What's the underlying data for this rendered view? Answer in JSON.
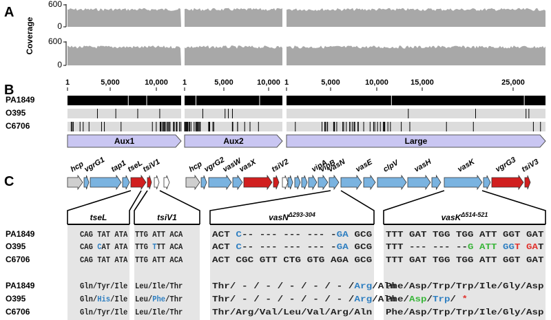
{
  "panel_a": {
    "label": "A",
    "axis_label": "Coverage",
    "tracks": [
      {
        "yticks": [
          600,
          0
        ]
      },
      {
        "yticks": [
          600,
          0
        ]
      }
    ]
  },
  "panel_b": {
    "label": "B",
    "rulers": [
      [
        "1",
        "5,000",
        "10,000"
      ],
      [
        "1",
        "5,000",
        "10,000"
      ],
      [
        "1",
        "5,000",
        "10,000",
        "15,000",
        "25,000"
      ]
    ],
    "rows": [
      "PA1849",
      "O395",
      "C6706"
    ],
    "regions": [
      "Aux1",
      "Aux2",
      "Large"
    ]
  },
  "panel_c": {
    "label": "C",
    "gene_labels": [
      "hcp",
      "vgrG1",
      "tap1",
      "tseL",
      "tsiV1",
      "hcp",
      "vgrG2",
      "vasW",
      "vasX",
      "tsiV2",
      "vipA",
      "vipB",
      "vasN",
      "vasE",
      "clpV",
      "vasH",
      "vasK",
      "vgrG3",
      "tsiV3"
    ],
    "alignments": [
      {
        "gene": "tseL"
      },
      {
        "gene": "tsiV1"
      },
      {
        "gene": "vasN",
        "sup": "Δ293-304"
      },
      {
        "gene": "vasK",
        "sup": "Δ514-521"
      }
    ],
    "dna_rows": [
      {
        "strain": "PA1849",
        "cells": [
          [
            "CAG TAT ATA"
          ],
          [
            "TTG ATT ACA"
          ],
          [
            "ACT ",
            {
              "text": "C",
              "color": "#2f7fc1"
            },
            "-- --- --- --- -",
            {
              "text": "GA",
              "color": "#2f7fc1"
            },
            " GCG"
          ],
          [
            "TTT GAT TGG TGG ATT GGT GAT"
          ]
        ]
      },
      {
        "strain": "O395",
        "cells": [
          [
            "CAG ",
            {
              "text": "C",
              "color": "#2f7fc1"
            },
            "AT ATA"
          ],
          [
            "TTG ",
            {
              "text": "T",
              "color": "#2f7fc1"
            },
            "TT ACA"
          ],
          [
            "ACT ",
            {
              "text": "C",
              "color": "#2f7fc1"
            },
            "-- --- --- --- -",
            {
              "text": "GA",
              "color": "#2f7fc1"
            },
            " GCG"
          ],
          [
            "TTT --- --- --",
            {
              "text": "G ATT",
              "color": "#3ab53a"
            },
            " ",
            {
              "text": "GG",
              "color": "#2f7fc1"
            },
            {
              "text": "T",
              "color": "#e0322d"
            },
            " ",
            {
              "text": "GA",
              "color": "#e0322d"
            },
            "T"
          ]
        ]
      },
      {
        "strain": "C6706",
        "cells": [
          [
            "CAG TAT ATA"
          ],
          [
            "TTG ATT ACA"
          ],
          [
            "ACT CGC GTT CTG GTG AGA GCG"
          ],
          [
            "TTT GAT TGG TGG ATT GGT GAT"
          ]
        ]
      }
    ],
    "protein_rows": [
      {
        "strain": "PA1849",
        "cells": [
          [
            "Gln/Tyr/Ile"
          ],
          [
            "Leu/Ile/Thr"
          ],
          [
            "Thr/ - / - / - / - / - /",
            {
              "text": "Arg",
              "color": "#2f7fc1"
            },
            "/Aln"
          ],
          [
            "Phe/Asp/Trp/Trp/Ile/Gly/Asp"
          ]
        ]
      },
      {
        "strain": "O395",
        "cells": [
          [
            "Gln/",
            {
              "text": "His",
              "color": "#2f7fc1"
            },
            "/Ile"
          ],
          [
            "Leu/",
            {
              "text": "Phe",
              "color": "#2f7fc1"
            },
            "/Thr"
          ],
          [
            "Thr/ - / - / - / - / - /",
            {
              "text": "Arg",
              "color": "#2f7fc1"
            },
            "/Aln"
          ],
          [
            "Phe/",
            {
              "text": "Asp",
              "color": "#3ab53a"
            },
            "/",
            {
              "text": "Trp",
              "color": "#2f7fc1"
            },
            "/ ",
            {
              "text": "*",
              "color": "#e0322d"
            }
          ]
        ]
      },
      {
        "strain": "C6706",
        "cells": [
          [
            "Gln/Tyr/Ile"
          ],
          [
            "Leu/Ile/Thr"
          ],
          [
            "Thr/Arg/Val/Leu/Val/Arg/Aln"
          ],
          [
            "Phe/Asp/Trp/Trp/Ile/Gly/Asp"
          ]
        ]
      }
    ]
  }
}
